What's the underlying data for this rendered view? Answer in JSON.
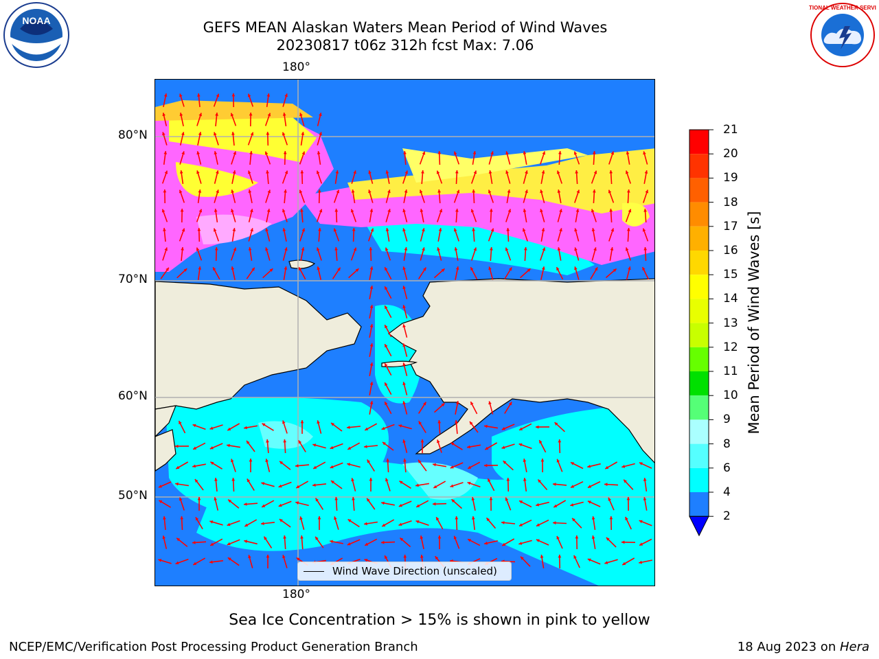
{
  "title": {
    "line1": "GEFS MEAN Alaskan Waters Mean Period of Wind Waves",
    "line2": "20230817 t06z 312h fcst   Max: 7.06"
  },
  "logos": {
    "left": {
      "icon": "noaa-logo-icon",
      "text": "NOAA"
    },
    "right": {
      "icon": "nws-logo-icon",
      "text": "NATIONAL WEATHER SERVICE"
    }
  },
  "map": {
    "top_lon_label": "180°",
    "bottom_lon_label": "180°",
    "lat_labels": [
      "80°N",
      "70°N",
      "60°N",
      "50°N"
    ],
    "colors": {
      "ocean_low": "#1e7fff",
      "ocean_mid": "#00ffff",
      "ice_pink": "#ff66ff",
      "ice_yellow": "#ffff33",
      "land": "#efeddc",
      "arrows": "#ff0000",
      "grid": "#b0b0b0"
    }
  },
  "colorbar": {
    "label": "Mean Period of Wind Waves [s]",
    "ticks": [
      "21",
      "20",
      "19",
      "18",
      "17",
      "16",
      "15",
      "14",
      "13",
      "12",
      "11",
      "10",
      "9",
      "8",
      "6",
      "4",
      "2"
    ],
    "colors": [
      "#ff0000",
      "#ff3300",
      "#ff6000",
      "#ff8c00",
      "#ffb000",
      "#ffd800",
      "#ffff00",
      "#e8ff00",
      "#c8ff00",
      "#66ff00",
      "#00e000",
      "#55ff77",
      "#aaffff",
      "#55ffff",
      "#00ffff",
      "#1e7fff"
    ],
    "under_color": "#0000ff"
  },
  "legend": {
    "label": "Wind Wave Direction (unscaled)"
  },
  "note": "Sea Ice Concentration > 15% is shown in pink to yellow",
  "footer": {
    "left": "NCEP/EMC/Verification Post Processing Product Generation Branch",
    "right_date": "18 Aug 2023 on ",
    "right_machine": "Hera"
  }
}
